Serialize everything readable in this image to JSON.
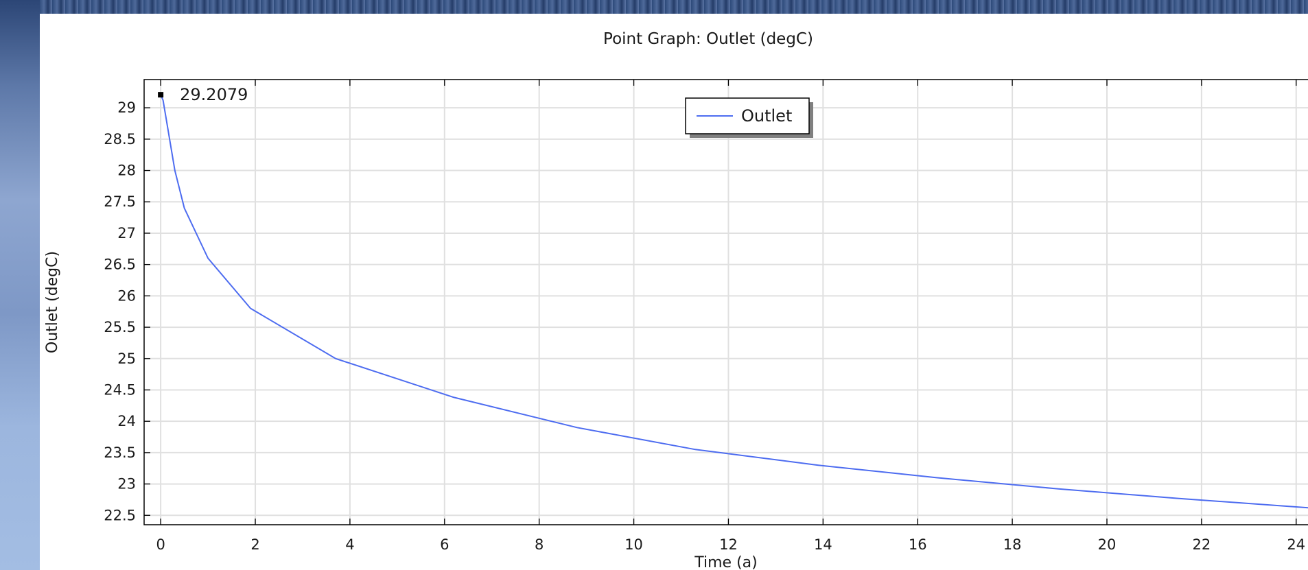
{
  "chart_data": {
    "type": "line",
    "title": "Point Graph: Outlet (degC)",
    "xlabel": "Time (a)",
    "ylabel": "Outlet (degC)",
    "xlim": [
      -0.35,
      24.25
    ],
    "ylim": [
      22.35,
      29.45
    ],
    "x_ticks": [
      "0",
      "2",
      "4",
      "6",
      "8",
      "10",
      "12",
      "14",
      "16",
      "18",
      "20",
      "22",
      "24"
    ],
    "y_ticks": [
      "22.5",
      "23",
      "23.5",
      "24",
      "24.5",
      "25",
      "25.5",
      "26",
      "26.5",
      "27",
      "27.5",
      "28",
      "28.5",
      "29"
    ],
    "grid": true,
    "legend_position": "top-center",
    "series": [
      {
        "name": "Outlet",
        "color": "#4d6cf0",
        "x": [
          0,
          0.05,
          0.1,
          0.2,
          0.3,
          0.5,
          1.0,
          1.9,
          3.7,
          6.2,
          8.8,
          11.3,
          13.9,
          16.4,
          19.0,
          21.5,
          24.25
        ],
        "y": [
          29.21,
          29.12,
          28.9,
          28.45,
          28.0,
          27.4,
          26.6,
          25.8,
          25.0,
          24.38,
          23.9,
          23.55,
          23.3,
          23.1,
          22.92,
          22.77,
          22.62
        ]
      }
    ],
    "annotation": {
      "x": 0,
      "y": 29.2079,
      "label": "29.2079"
    }
  }
}
